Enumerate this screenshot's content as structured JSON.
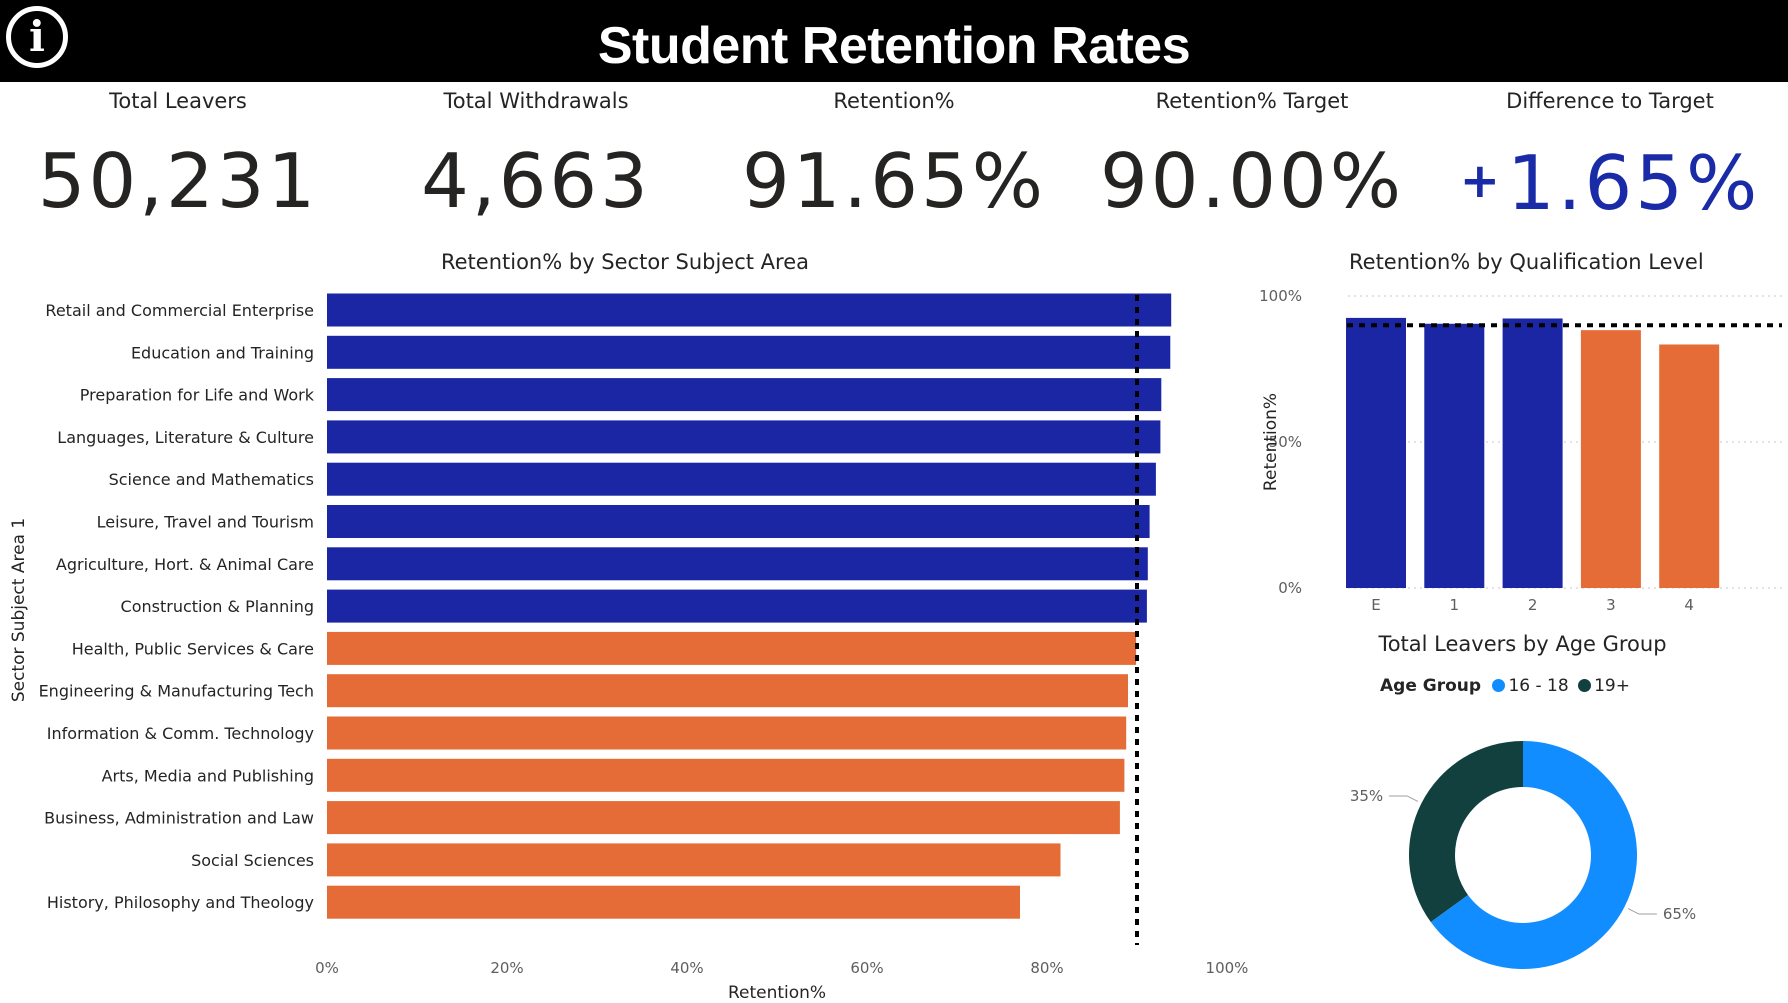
{
  "header": {
    "title": "Student Retention Rates",
    "info_icon": "info-circle-icon"
  },
  "kpis": [
    {
      "label": "Total Leavers",
      "value": "50,231"
    },
    {
      "label": "Total Withdrawals",
      "value": "4,663"
    },
    {
      "label": "Retention%",
      "value": "91.65%"
    },
    {
      "label": "Retention% Target",
      "value": "90.00%"
    },
    {
      "label": "Difference to Target",
      "value": "1.65%",
      "sign": "+"
    }
  ],
  "colors": {
    "above_target": "#1a26a3",
    "below_target": "#e66c37",
    "age_16_18": "#118dff",
    "age_19_plus": "#12403f",
    "positive_text": "#1a2ba8"
  },
  "chart_data": [
    {
      "type": "bar",
      "orientation": "horizontal",
      "title": "Retention% by Sector Subject Area",
      "xlabel": "Retention%",
      "ylabel": "Sector Subject Area 1",
      "xlim": [
        0,
        100
      ],
      "xticks": [
        "0%",
        "20%",
        "40%",
        "60%",
        "80%",
        "100%"
      ],
      "target_line": 90,
      "categories": [
        "Retail and Commercial Enterprise",
        "Education and Training",
        "Preparation for Life and Work",
        "Languages, Literature & Culture",
        "Science and Mathematics",
        "Leisure, Travel and Tourism",
        "Agriculture, Hort. & Animal Care",
        "Construction & Planning",
        "Health, Public Services & Care",
        "Engineering & Manufacturing Tech",
        "Information & Comm. Technology",
        "Arts, Media and Publishing",
        "Business, Administration and Law",
        "Social Sciences",
        "History, Philosophy and Theology"
      ],
      "values": [
        93.8,
        93.7,
        92.7,
        92.6,
        92.1,
        91.4,
        91.2,
        91.1,
        89.9,
        89.0,
        88.8,
        88.6,
        88.1,
        81.5,
        77.0
      ]
    },
    {
      "type": "bar",
      "title": "Retention% by Qualification Level",
      "ylabel": "Retention%",
      "ylim": [
        0,
        100
      ],
      "yticks": [
        "0%",
        "50%",
        "100%"
      ],
      "target_line": 90,
      "categories": [
        "E",
        "1",
        "2",
        "3",
        "4"
      ],
      "values": [
        92.5,
        90.5,
        92.3,
        88.3,
        83.4
      ]
    },
    {
      "type": "pie",
      "donut": true,
      "title": "Total Leavers by Age Group",
      "legend_title": "Age Group",
      "legend_position": "top",
      "slices": [
        {
          "label": "16 - 18",
          "value": 65,
          "text": "65%"
        },
        {
          "label": "19+",
          "value": 35,
          "text": "35%"
        }
      ]
    }
  ]
}
